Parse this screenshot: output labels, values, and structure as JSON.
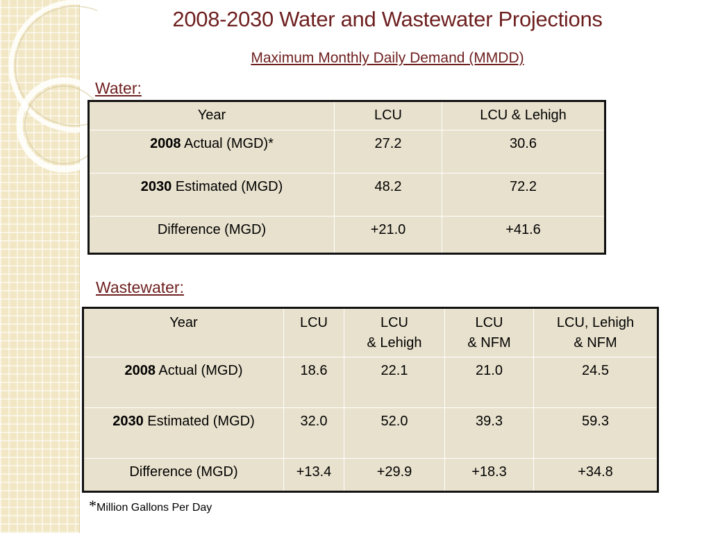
{
  "title": "2008-2030 Water and Wastewater Projections",
  "subtitle": "Maximum Monthly Daily Demand (MMDD)",
  "water": {
    "label": "Water:",
    "headers": [
      "Year",
      "LCU",
      "LCU & Lehigh"
    ],
    "rows": [
      {
        "year_bold": "2008",
        "year_rest": " Actual (MGD)*",
        "values": [
          "27.2",
          "30.6"
        ]
      },
      {
        "year_bold": "2030",
        "year_rest": " Estimated (MGD)",
        "values": [
          "48.2",
          "72.2"
        ]
      },
      {
        "year_bold": "",
        "year_rest": "Difference (MGD)",
        "values": [
          "+21.0",
          "+41.6"
        ]
      }
    ]
  },
  "wastewater": {
    "label": "Wastewater:",
    "headers": [
      {
        "line1": "Year",
        "line2": ""
      },
      {
        "line1": "LCU",
        "line2": ""
      },
      {
        "line1": "LCU",
        "line2": "& Lehigh"
      },
      {
        "line1": "LCU",
        "line2": "& NFM"
      },
      {
        "line1": "LCU, Lehigh",
        "line2": "& NFM"
      }
    ],
    "rows": [
      {
        "year_bold": "2008",
        "year_rest": " Actual (MGD)",
        "values": [
          "18.6",
          "22.1",
          "21.0",
          "24.5"
        ]
      },
      {
        "year_bold": "2030",
        "year_rest": " Estimated (MGD)",
        "values": [
          "32.0",
          "52.0",
          "39.3",
          "59.3"
        ]
      },
      {
        "year_bold": "",
        "year_rest": "Difference (MGD)",
        "values": [
          "+13.4",
          "+29.9",
          "+18.3",
          "+34.8"
        ]
      }
    ]
  },
  "footnote": {
    "star": "*",
    "text": "Million Gallons Per Day"
  },
  "colors": {
    "title": "#6e1f1f",
    "table_bg": "#e8e1cd",
    "side_panel": "#f2e7c4"
  }
}
